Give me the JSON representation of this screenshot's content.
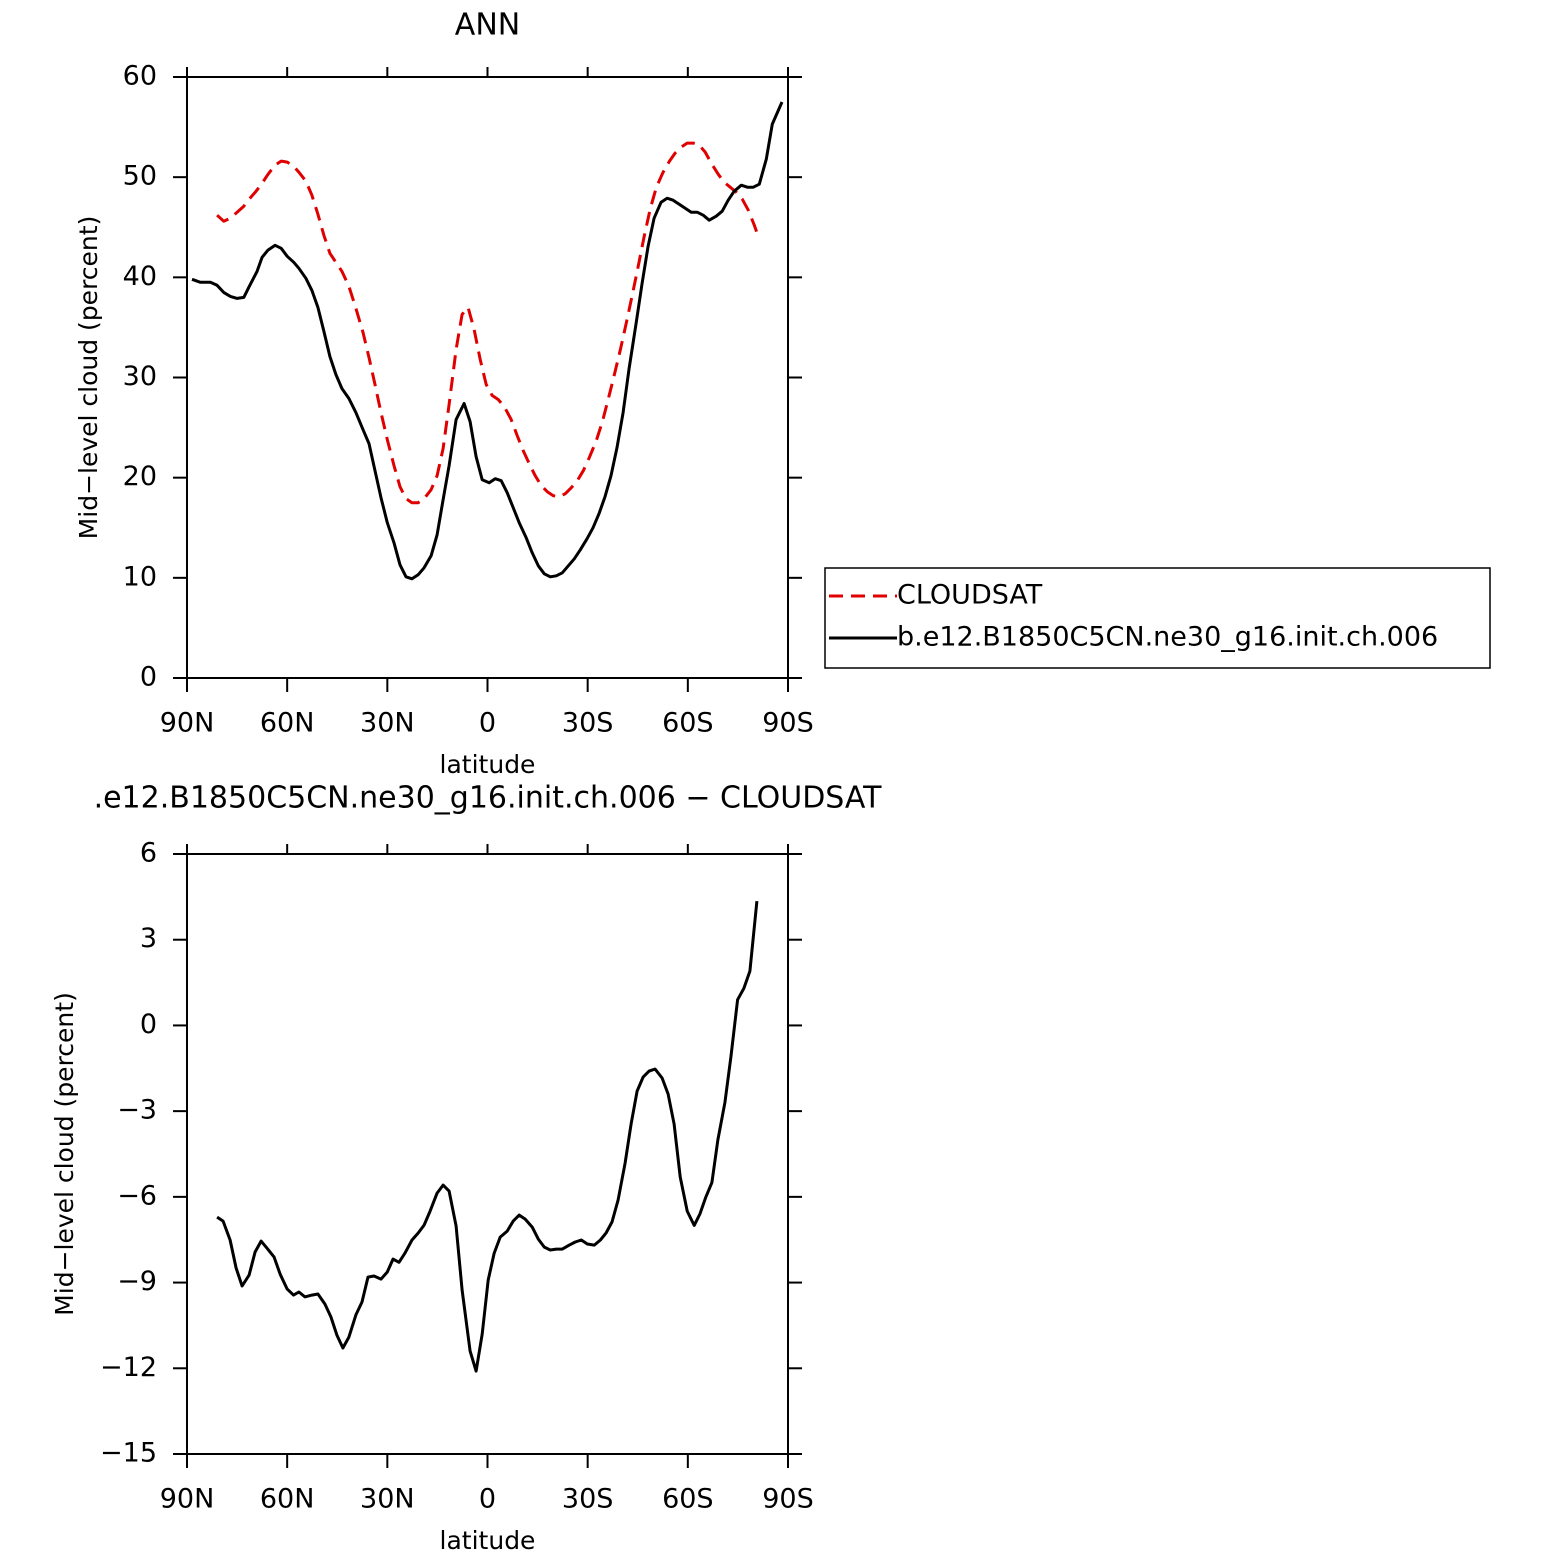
{
  "chart_data": [
    {
      "type": "line",
      "title": "ANN",
      "xlabel": "latitude",
      "ylabel": "Mid−level cloud (percent)",
      "xlim": [
        90,
        -90
      ],
      "xticks": [
        {
          "value": 90,
          "label": "90N"
        },
        {
          "value": 60,
          "label": "60N"
        },
        {
          "value": 30,
          "label": "30N"
        },
        0,
        {
          "value": -30,
          "label": "30S"
        },
        {
          "value": -60,
          "label": "60S"
        },
        {
          "value": -90,
          "label": "90S"
        }
      ],
      "ylim": [
        0,
        60
      ],
      "yticks": [
        0,
        10,
        20,
        30,
        40,
        50,
        60
      ],
      "legend": "right",
      "series": [
        {
          "name": "CLOUDSAT",
          "color": "#e00000",
          "dash": "dashed",
          "x": [
            81,
            79,
            77,
            75,
            73,
            71.4,
            69.3,
            67.5,
            65.7,
            63.6,
            61.8,
            60,
            58.1,
            56.5,
            54.4,
            52.6,
            50.8,
            49,
            47.2,
            45.4,
            43.6,
            41.5,
            39.4,
            37.3,
            35.5,
            33.7,
            31.9,
            30,
            28,
            26.2,
            24.4,
            22.6,
            20.8,
            19,
            16.9,
            15.1,
            13.3,
            11.5,
            9.4,
            7.6,
            5.8,
            4,
            2.2,
            0.4,
            -1.4,
            -3.2,
            -5,
            -7.1,
            -8.9,
            -10.7,
            -12.5,
            -14.3,
            -16.1,
            -17.9,
            -19.7,
            -21.5,
            -23.3,
            -25.1,
            -26.9,
            -28.7,
            -30.5,
            -32.6,
            -34.4,
            -36.2,
            -38,
            -39.8,
            -41.6,
            -43.4,
            -45.2,
            -47,
            -48.8,
            -50.6,
            -52.6,
            -54.5,
            -56.2,
            -58,
            -59.8,
            -61.6,
            -63.4,
            -65.2,
            -67,
            -69.1,
            -70.9,
            -72.7,
            -74.5,
            -76.3,
            -78.1,
            -79.9,
            -81
          ],
          "values": [
            46.2,
            45.6,
            45.9,
            46.5,
            47.1,
            47.8,
            48.6,
            49.4,
            50.3,
            51.2,
            51.6,
            51.5,
            51.1,
            50.5,
            49.6,
            48.2,
            46.3,
            44.2,
            42.4,
            41.5,
            40.6,
            39.1,
            36.9,
            34.5,
            32.0,
            29.3,
            26.5,
            23.8,
            21.2,
            19.1,
            17.9,
            17.5,
            17.5,
            17.9,
            18.8,
            20.2,
            22.9,
            27.3,
            32.8,
            36.3,
            37.0,
            34.8,
            31.8,
            29.3,
            28.2,
            27.8,
            27.1,
            25.8,
            24.2,
            22.7,
            21.4,
            20.2,
            19.2,
            18.6,
            18.2,
            18.1,
            18.4,
            19.0,
            19.7,
            20.7,
            22.0,
            23.7,
            25.6,
            27.9,
            30.3,
            32.8,
            35.5,
            38.3,
            41.2,
            44.2,
            46.9,
            49.0,
            50.5,
            51.6,
            52.4,
            53.0,
            53.4,
            53.4,
            53.2,
            52.5,
            51.4,
            50.3,
            49.5,
            49.0,
            48.5,
            47.8,
            46.7,
            45.2,
            44.2
          ]
        },
        {
          "name": "b.e12.B1850C5CN.ne30_g16.init.ch.006",
          "color": "#000000",
          "dash": "solid",
          "x": [
            88.5,
            86,
            83,
            81,
            79,
            77,
            75,
            73,
            71.5,
            69,
            67.5,
            65.8,
            63.6,
            61.8,
            60,
            58,
            56.5,
            54.4,
            52.6,
            50.8,
            49,
            47.2,
            45.4,
            43.6,
            41.5,
            39.4,
            37.3,
            35.5,
            33.7,
            31.9,
            30,
            28,
            26.2,
            24.4,
            22.6,
            20.8,
            19,
            16.9,
            15.1,
            13.3,
            11.5,
            9.4,
            7,
            5.2,
            3.4,
            1.6,
            -0.5,
            -2.3,
            -4.1,
            -5.9,
            -7.7,
            -9.5,
            -11.6,
            -13.4,
            -15.2,
            -17,
            -18.8,
            -20.6,
            -22.4,
            -24.2,
            -26,
            -27.8,
            -29.8,
            -31.6,
            -33.4,
            -35.2,
            -37,
            -38.8,
            -40.6,
            -42.4,
            -44.5,
            -46.3,
            -48.1,
            -49.9,
            -52,
            -53.8,
            -55.6,
            -57.4,
            -59.2,
            -61,
            -62.8,
            -64.6,
            -66.4,
            -68.5,
            -70.3,
            -72.1,
            -73.9,
            -76,
            -77.8,
            -79.6,
            -81.4,
            -83.5,
            -85.3,
            -88.2
          ],
          "values": [
            39.8,
            39.5,
            39.5,
            39.2,
            38.5,
            38.1,
            37.9,
            38.0,
            39,
            40.6,
            42.0,
            42.7,
            43.2,
            42.9,
            42.1,
            41.5,
            40.9,
            39.9,
            38.7,
            37.0,
            34.6,
            32.1,
            30.3,
            28.9,
            27.9,
            26.5,
            24.8,
            23.4,
            20.7,
            18.0,
            15.5,
            13.5,
            11.3,
            10.1,
            9.9,
            10.3,
            11.0,
            12.2,
            14.3,
            17.8,
            21.2,
            25.8,
            27.4,
            25.6,
            22.1,
            19.8,
            19.5,
            19.9,
            19.7,
            18.5,
            17.0,
            15.5,
            14.0,
            12.5,
            11.2,
            10.4,
            10.1,
            10.2,
            10.5,
            11.2,
            11.9,
            12.8,
            13.9,
            15.0,
            16.4,
            18.1,
            20.2,
            23.0,
            26.5,
            30.9,
            35.4,
            39.4,
            43.1,
            45.9,
            47.5,
            47.9,
            47.7,
            47.3,
            46.9,
            46.5,
            46.5,
            46.2,
            45.7,
            46.1,
            46.6,
            47.7,
            48.6,
            49.2,
            49.0,
            49.0,
            49.3,
            51.8,
            55.3,
            57.5
          ]
        }
      ]
    },
    {
      "type": "line",
      "title": ".e12.B1850C5CN.ne30_g16.init.ch.006 − CLOUDSAT",
      "xlabel": "latitude",
      "ylabel": "Mid−level cloud (percent)",
      "xlim": [
        90,
        -90
      ],
      "xticks": [
        {
          "value": 90,
          "label": "90N"
        },
        {
          "value": 60,
          "label": "60N"
        },
        {
          "value": 30,
          "label": "30N"
        },
        0,
        {
          "value": -30,
          "label": "30S"
        },
        {
          "value": -60,
          "label": "60S"
        },
        {
          "value": -90,
          "label": "90S"
        }
      ],
      "ylim": [
        -15,
        6
      ],
      "yticks": [
        {
          "value": -15,
          "label": "−15"
        },
        {
          "value": -12,
          "label": "−12"
        },
        {
          "value": -9,
          "label": "−9"
        },
        {
          "value": -6,
          "label": "−6"
        },
        {
          "value": -3,
          "label": "−3"
        },
        0,
        3,
        6
      ],
      "series": [
        {
          "color": "#000000",
          "dash": "solid",
          "x": [
            81,
            79.2,
            77.1,
            75.3,
            73.5,
            71.4,
            69.6,
            67.8,
            66,
            63.9,
            62.1,
            60,
            58.1,
            56.5,
            54.7,
            52.6,
            50.8,
            48.7,
            46.9,
            45.1,
            43.3,
            41.5,
            39.4,
            37.6,
            35.8,
            34,
            31.9,
            30,
            28.3,
            26.5,
            24.7,
            22.6,
            20.8,
            19,
            17.2,
            15.1,
            13.3,
            11.5,
            9.4,
            7.6,
            5.2,
            3.4,
            1.6,
            -0.2,
            -2,
            -3.8,
            -5.9,
            -7.7,
            -9.5,
            -11.3,
            -13.4,
            -15.2,
            -17,
            -18.8,
            -20.6,
            -22.4,
            -24.5,
            -26.3,
            -28.1,
            -29.9,
            -32,
            -33.8,
            -35.5,
            -37.3,
            -39.1,
            -41.2,
            -43,
            -44.8,
            -46.6,
            -48.4,
            -50.2,
            -52.3,
            -54.1,
            -55.9,
            -57.7,
            -59.8,
            -61.9,
            -63.6,
            -65.4,
            -67.2,
            -69,
            -71.1,
            -72.9,
            -74.9,
            -76.8,
            -78.6,
            -80.7
          ],
          "values": [
            -6.71,
            -6.85,
            -7.51,
            -8.49,
            -9.12,
            -8.74,
            -7.93,
            -7.55,
            -7.8,
            -8.11,
            -8.71,
            -9.23,
            -9.44,
            -9.33,
            -9.5,
            -9.44,
            -9.4,
            -9.75,
            -10.2,
            -10.84,
            -11.29,
            -10.91,
            -10.13,
            -9.68,
            -8.81,
            -8.77,
            -8.88,
            -8.63,
            -8.18,
            -8.29,
            -7.97,
            -7.51,
            -7.27,
            -6.99,
            -6.5,
            -5.87,
            -5.59,
            -5.8,
            -7.02,
            -9.26,
            -11.4,
            -12.1,
            -10.8,
            -8.91,
            -7.97,
            -7.41,
            -7.2,
            -6.85,
            -6.64,
            -6.78,
            -7.06,
            -7.48,
            -7.76,
            -7.86,
            -7.83,
            -7.83,
            -7.69,
            -7.58,
            -7.51,
            -7.65,
            -7.69,
            -7.51,
            -7.27,
            -6.88,
            -6.11,
            -4.82,
            -3.45,
            -2.3,
            -1.81,
            -1.6,
            -1.53,
            -1.84,
            -2.4,
            -3.45,
            -5.3,
            -6.5,
            -7.0,
            -6.6,
            -6.0,
            -5.5,
            -4.0,
            -2.7,
            -1.1,
            0.9,
            1.3,
            1.9,
            4.35
          ]
        }
      ]
    }
  ]
}
